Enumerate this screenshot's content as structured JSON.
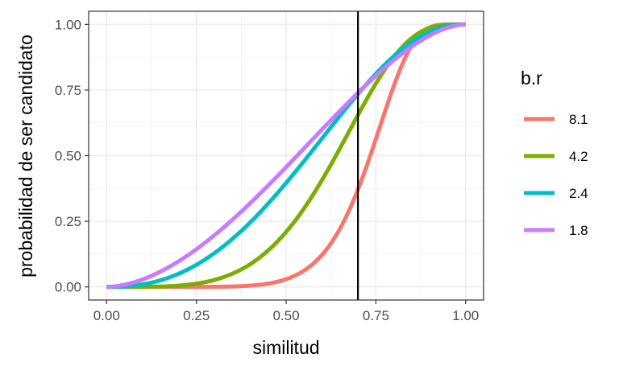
{
  "chart_data": {
    "type": "line",
    "xlabel": "similitud",
    "ylabel": "probabilidad de ser candidato",
    "xlim": [
      -0.05,
      1.05
    ],
    "ylim": [
      -0.05,
      1.05
    ],
    "x_ticks": [
      "0.00",
      "0.25",
      "0.50",
      "0.75",
      "1.00"
    ],
    "y_ticks": [
      "0.00",
      "0.25",
      "0.50",
      "0.75",
      "1.00"
    ],
    "grid": true,
    "vline": {
      "x": 0.7,
      "color": "#000000"
    },
    "legend": {
      "title": "b.r",
      "position": "right"
    },
    "series": [
      {
        "name": "8.1",
        "b": 8.1,
        "r": 8.1,
        "color": "#F8766D"
      },
      {
        "name": "4.2",
        "b": 4.2,
        "r": 4.2,
        "color": "#7CAE00"
      },
      {
        "name": "2.4",
        "b": 2.4,
        "r": 2.4,
        "color": "#00BFC4"
      },
      {
        "name": "1.8",
        "b": 1.8,
        "r": 1.8,
        "color": "#C77CFF"
      }
    ]
  }
}
